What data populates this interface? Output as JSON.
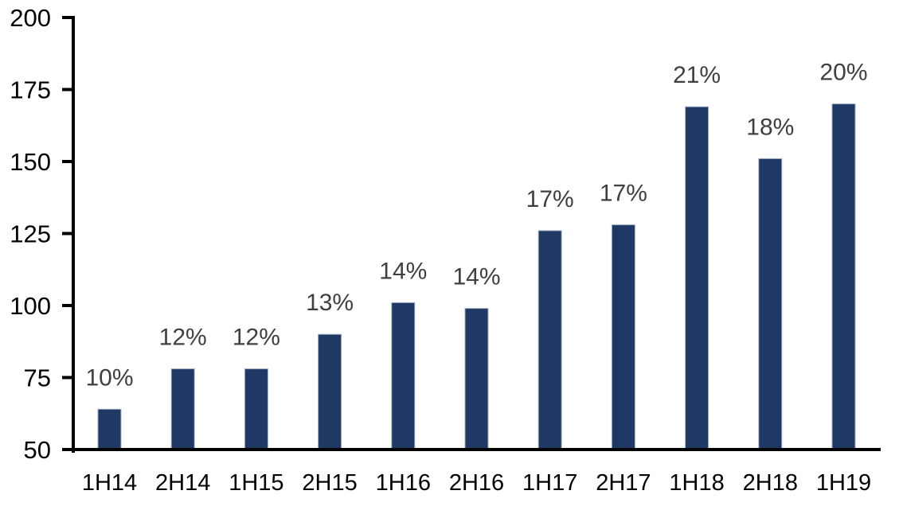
{
  "chart_data": {
    "type": "bar",
    "title": "",
    "xlabel": "",
    "ylabel": "",
    "categories": [
      "1H14",
      "2H14",
      "1H15",
      "2H15",
      "1H16",
      "2H16",
      "1H17",
      "2H17",
      "1H18",
      "2H18",
      "1H19"
    ],
    "values": [
      64,
      78,
      78,
      90,
      101,
      99,
      126,
      128,
      169,
      151,
      170
    ],
    "data_labels": [
      "10%",
      "12%",
      "12%",
      "13%",
      "14%",
      "14%",
      "17%",
      "17%",
      "21%",
      "18%",
      "20%"
    ],
    "yticks": [
      50,
      75,
      100,
      125,
      150,
      175,
      200
    ],
    "ytick_labels": [
      "50",
      "75",
      "100",
      "125",
      "150",
      "175",
      "200"
    ],
    "ylim": [
      50,
      200
    ],
    "grid": false,
    "legend": false,
    "colors": {
      "bar_fill": "#1F3864",
      "bar_border": "#A3B1C7",
      "axis": "#000000",
      "tick_label": "#000000",
      "data_label": "#3F3F3F",
      "background": "#FFFFFF"
    }
  }
}
